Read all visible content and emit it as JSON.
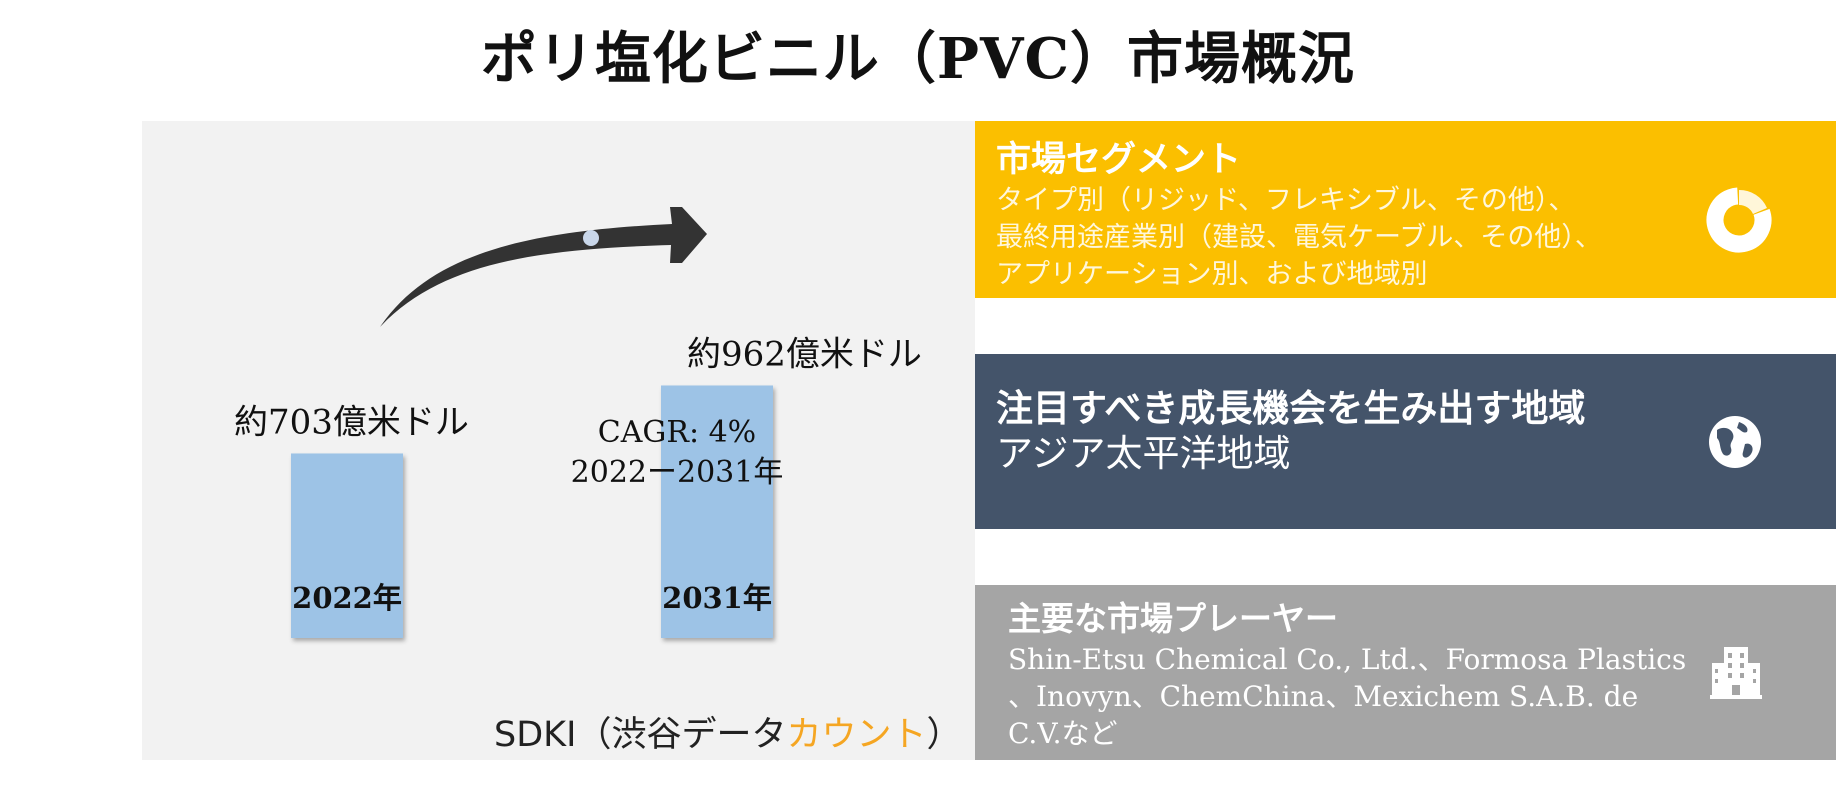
{
  "title": "ポリ塩化ビニル（PVC）市場概況",
  "chart_data": {
    "type": "bar",
    "categories": [
      "2022年",
      "2031年"
    ],
    "values": [
      703,
      962
    ],
    "value_labels": [
      "約703億米ドル",
      "約962億米ドル"
    ],
    "annotation": [
      "CAGR: 4%",
      "2022ー2031年"
    ],
    "bar_color": "#9dc3e6",
    "arrow_color": "#333333"
  },
  "brand": {
    "main": "SDKI（渋谷データ",
    "accent": "カウント",
    "close": "）"
  },
  "segments": {
    "heading": "市場セグメント",
    "lines": [
      "タイプ別（リジッド、フレキシブル、その他）、",
      "最終用途産業別（建設、電気ケーブル、その他）、",
      "アプリケーション別、および地域別"
    ],
    "icon": "donut-chart-icon",
    "color": "#fbbf00"
  },
  "region": {
    "heading": "注目すべき成長機会を生み出す地域",
    "value": "アジア太平洋地域",
    "icon": "globe-icon",
    "color": "#44546a"
  },
  "players": {
    "heading": "主要な市場プレーヤー",
    "lines": [
      "Shin-Etsu Chemical Co., Ltd.、Formosa Plastics",
      "、Inovyn、ChemChina、Mexichem S.A.B. de",
      "C.V.など"
    ],
    "icon": "building-icon",
    "color": "#a5a5a5"
  }
}
